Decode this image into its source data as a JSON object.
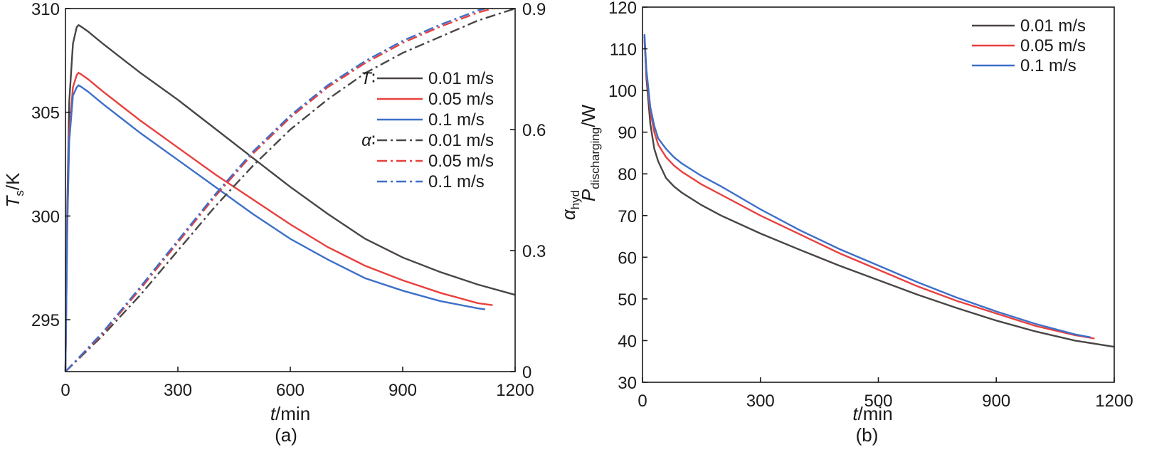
{
  "chart_data": [
    {
      "type": "line",
      "panel_label": "(a)",
      "xlabel_var": "t",
      "xlabel_unit": "/min",
      "ylabel_var": "T",
      "ylabel_sub": "s",
      "ylabel_unit": "/K",
      "y2label_var": "α",
      "y2label_sub": "hyd",
      "xlim": [
        0,
        1200
      ],
      "ylim": [
        292.5,
        310
      ],
      "y2lim": [
        0,
        0.9
      ],
      "xticks": [
        0,
        300,
        600,
        900,
        1200
      ],
      "yticks": [
        295,
        300,
        305,
        310
      ],
      "y2ticks": [
        0,
        0.3,
        0.6,
        0.9
      ],
      "legend_groups": [
        {
          "label_var": "T",
          "label_sep": "∶",
          "series_idx": [
            0,
            1,
            2
          ]
        },
        {
          "label_var": "α",
          "label_sep": "∶",
          "series_idx": [
            3,
            4,
            5
          ]
        }
      ],
      "legend_position": "top-right",
      "series": [
        {
          "name": "0.01 m/s",
          "axis": "left",
          "style": "solid",
          "color": "#4a4545",
          "x": [
            0,
            5,
            10,
            20,
            30,
            35,
            40,
            60,
            100,
            150,
            200,
            300,
            400,
            500,
            600,
            700,
            800,
            900,
            1000,
            1100,
            1200
          ],
          "y": [
            292.5,
            300.5,
            305.5,
            308.3,
            309.1,
            309.2,
            309.15,
            308.9,
            308.3,
            307.6,
            306.9,
            305.6,
            304.2,
            302.8,
            301.4,
            300.1,
            298.9,
            298.0,
            297.3,
            296.7,
            296.2
          ]
        },
        {
          "name": "0.05 m/s",
          "axis": "left",
          "style": "solid",
          "color": "#e8403e",
          "x": [
            0,
            5,
            10,
            20,
            30,
            35,
            40,
            60,
            100,
            150,
            200,
            300,
            400,
            500,
            600,
            700,
            800,
            900,
            1000,
            1100,
            1140
          ],
          "y": [
            292.5,
            299.8,
            304.0,
            306.2,
            306.8,
            306.9,
            306.85,
            306.6,
            306.0,
            305.3,
            304.6,
            303.3,
            302.0,
            300.8,
            299.6,
            298.5,
            297.6,
            296.9,
            296.3,
            295.8,
            295.7
          ]
        },
        {
          "name": "0.1 m/s",
          "axis": "left",
          "style": "solid",
          "color": "#3d6fc9",
          "x": [
            0,
            5,
            10,
            20,
            30,
            35,
            40,
            60,
            100,
            150,
            200,
            300,
            400,
            500,
            600,
            700,
            800,
            900,
            1000,
            1100,
            1120
          ],
          "y": [
            292.5,
            299.5,
            303.6,
            305.8,
            306.2,
            306.3,
            306.25,
            306.0,
            305.4,
            304.7,
            304.0,
            302.7,
            301.4,
            300.1,
            298.9,
            297.9,
            297.0,
            296.4,
            295.9,
            295.55,
            295.5
          ]
        },
        {
          "name": "0.01 m/s",
          "axis": "right",
          "style": "dashdot",
          "color": "#4a4545",
          "x": [
            0,
            100,
            200,
            300,
            400,
            500,
            600,
            700,
            800,
            900,
            1000,
            1100,
            1200
          ],
          "y": [
            0,
            0.09,
            0.19,
            0.3,
            0.41,
            0.51,
            0.6,
            0.675,
            0.74,
            0.79,
            0.83,
            0.87,
            0.9
          ]
        },
        {
          "name": "0.05 m/s",
          "axis": "right",
          "style": "dashdot",
          "color": "#e8403e",
          "x": [
            0,
            100,
            200,
            300,
            400,
            500,
            600,
            700,
            800,
            900,
            1000,
            1100,
            1140
          ],
          "y": [
            0,
            0.095,
            0.205,
            0.32,
            0.435,
            0.54,
            0.63,
            0.705,
            0.765,
            0.815,
            0.855,
            0.89,
            0.9
          ]
        },
        {
          "name": "0.1 m/s",
          "axis": "right",
          "style": "dashdot",
          "color": "#3d6fc9",
          "x": [
            0,
            100,
            200,
            300,
            400,
            500,
            600,
            700,
            800,
            900,
            1000,
            1100,
            1120
          ],
          "y": [
            0,
            0.098,
            0.21,
            0.325,
            0.44,
            0.545,
            0.635,
            0.71,
            0.77,
            0.82,
            0.86,
            0.895,
            0.9
          ]
        }
      ]
    },
    {
      "type": "line",
      "panel_label": "(b)",
      "xlabel_var": "t",
      "xlabel_unit": "/min",
      "ylabel_var": "P",
      "ylabel_sub": "discharging",
      "ylabel_unit": "/W",
      "xlim": [
        0,
        1200
      ],
      "ylim": [
        30,
        120
      ],
      "xticks": [
        0,
        300,
        500,
        900,
        1200
      ],
      "yticks": [
        30,
        40,
        50,
        60,
        70,
        80,
        90,
        100,
        110,
        120
      ],
      "legend_position": "top-right",
      "series": [
        {
          "name": "0.01 m/s",
          "style": "solid",
          "color": "#4a4545",
          "x": [
            5,
            10,
            20,
            30,
            40,
            60,
            80,
            100,
            150,
            200,
            300,
            400,
            500,
            600,
            700,
            800,
            900,
            1000,
            1100,
            1200
          ],
          "y": [
            113,
            103,
            92,
            86,
            83,
            79,
            77,
            75.5,
            72.5,
            70,
            65.7,
            61.8,
            58,
            54.5,
            51,
            47.8,
            44.8,
            42.2,
            40,
            38.5
          ]
        },
        {
          "name": "0.05 m/s",
          "style": "solid",
          "color": "#e8403e",
          "x": [
            5,
            10,
            20,
            30,
            40,
            60,
            80,
            100,
            150,
            200,
            300,
            400,
            500,
            600,
            700,
            800,
            900,
            1000,
            1100,
            1150
          ],
          "y": [
            112,
            104,
            95,
            90,
            87,
            84,
            82,
            80.5,
            77.5,
            75,
            70,
            65.5,
            61,
            57,
            53,
            49.5,
            46.5,
            43.5,
            41.3,
            40.5
          ]
        },
        {
          "name": "0.1 m/s",
          "style": "solid",
          "color": "#3d6fc9",
          "x": [
            5,
            10,
            20,
            30,
            40,
            60,
            80,
            100,
            150,
            200,
            300,
            400,
            500,
            600,
            700,
            800,
            900,
            1000,
            1100,
            1140
          ],
          "y": [
            113.5,
            105,
            96,
            91.5,
            88.5,
            86,
            84,
            82.5,
            79.5,
            77,
            71.5,
            66.5,
            62,
            58,
            54,
            50.3,
            47,
            44,
            41.5,
            40.8
          ]
        }
      ]
    }
  ]
}
